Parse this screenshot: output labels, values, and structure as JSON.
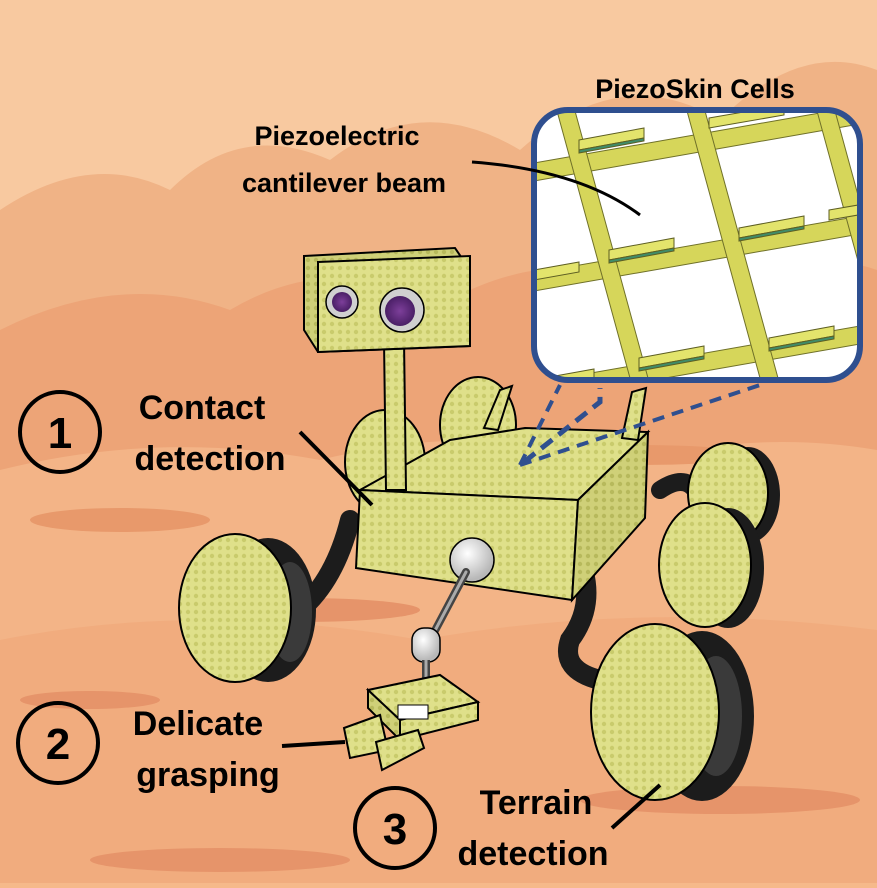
{
  "inset": {
    "title": "PiezoSkin Cells"
  },
  "callouts": {
    "beam_line1": "Piezoelectric",
    "beam_line2": "cantilever beam"
  },
  "features": [
    {
      "number": "1",
      "line1": "Contact",
      "line2": "detection"
    },
    {
      "number": "2",
      "line1": "Delicate",
      "line2": "grasping"
    },
    {
      "number": "3",
      "line1": "Terrain",
      "line2": "detection"
    }
  ],
  "colors": {
    "sky": "#f8c9a0",
    "hills": "#eeaa7c",
    "ground": "#f3b487",
    "robot_body": "#dfe08a",
    "tire": "#1c1c1c",
    "inset_border": "#2f4f8f",
    "cantilever": "#d6d65a"
  }
}
